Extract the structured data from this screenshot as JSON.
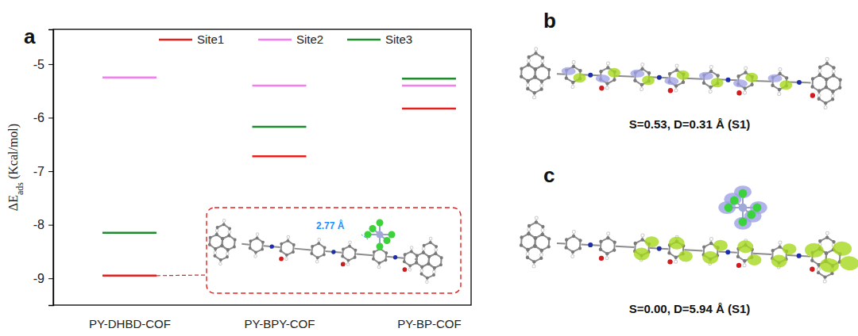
{
  "chart_data": {
    "type": "level",
    "panel_label": "a",
    "y_label": [
      {
        "text": "ΔE"
      },
      {
        "text": "ads",
        "sub": true
      },
      {
        "text": " (Kcal/mol)"
      }
    ],
    "categories": [
      "PY-DHBD-COF",
      "PY-BPY-COF",
      "PY-BP-COF"
    ],
    "series": [
      {
        "name": "Site1",
        "color": "#e3201e",
        "values": [
          -8.95,
          -6.72,
          -5.83
        ]
      },
      {
        "name": "Site2",
        "color": "#f27ef0",
        "values": [
          -5.25,
          -5.4,
          -5.4
        ]
      },
      {
        "name": "Site3",
        "color": "#1f8a2e",
        "values": [
          -8.15,
          -6.17,
          -5.27
        ]
      }
    ],
    "ylim": [
      -9.5,
      -4.35
    ],
    "yticks": [
      -9,
      -8,
      -7,
      -6,
      -5
    ],
    "legend": "top",
    "annotation": "2.77 Å"
  },
  "panels": [
    {
      "label": "b",
      "caption": "S=0.53, D=0.31 Å (S1)"
    },
    {
      "label": "c",
      "caption": "S=0.00, D=5.94 Å (S1)"
    }
  ]
}
